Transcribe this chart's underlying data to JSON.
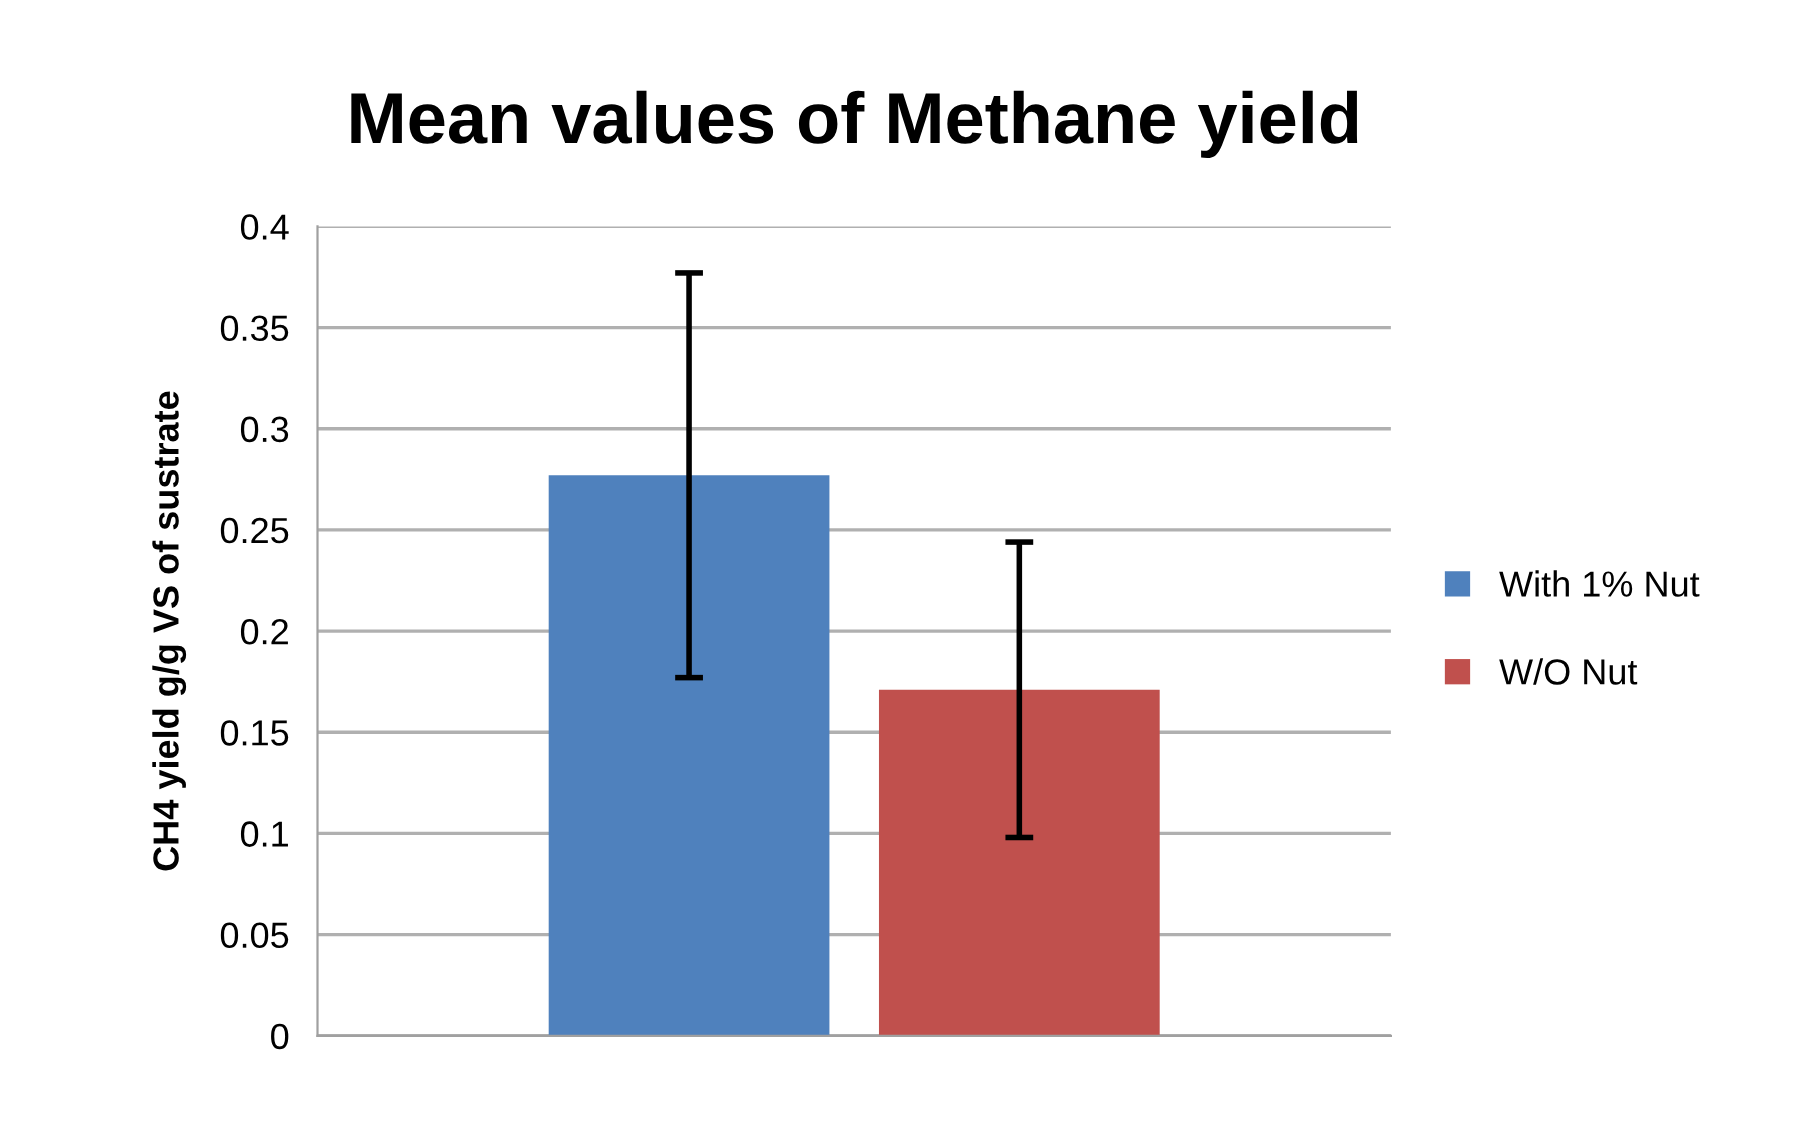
{
  "chart_data": {
    "type": "bar",
    "title": "Mean values of Methane yield",
    "ylabel": "CH4 yield g/g VS of sustrate",
    "categories": [
      null
    ],
    "series": [
      {
        "name": "With 1% Nut",
        "color": "#4f81bd",
        "values": [
          0.277
        ],
        "errors": [
          0.1
        ]
      },
      {
        "name": "W/O Nut",
        "color": "#c0504d",
        "values": [
          0.171
        ],
        "errors": [
          0.073
        ]
      }
    ],
    "ylim": [
      0,
      0.4
    ],
    "yticks": [
      0,
      0.05,
      0.1,
      0.15,
      0.2,
      0.25,
      0.3,
      0.35,
      0.4
    ],
    "grid": "y",
    "legend": "right",
    "tick_labels": "y"
  }
}
